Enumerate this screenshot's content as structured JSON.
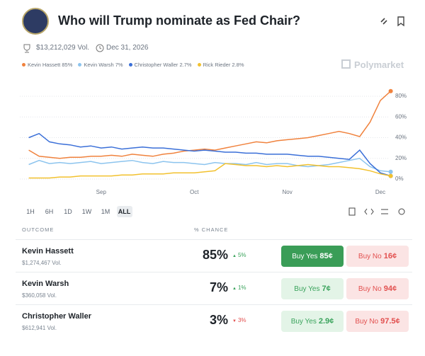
{
  "header": {
    "title": "Who will Trump nominate as Fed Chair?",
    "volume": "$13,212,029 Vol.",
    "end_date": "Dec 31, 2026",
    "brand": "Polymarket"
  },
  "chart_data": {
    "type": "line",
    "categories": [
      null,
      null,
      null,
      null,
      null,
      null,
      null,
      "Sep",
      null,
      null,
      null,
      null,
      null,
      null,
      null,
      null,
      "Oct",
      null,
      null,
      null,
      null,
      null,
      null,
      null,
      null,
      "Nov",
      null,
      null,
      null,
      null,
      null,
      null,
      null,
      null,
      "Dec",
      null
    ],
    "series": [
      {
        "name": "Kevin Hassett 85%",
        "color": "#f0823d",
        "values": [
          28,
          22,
          21,
          20,
          21,
          21,
          22,
          22,
          23,
          22,
          24,
          23,
          22,
          24,
          25,
          27,
          28,
          29,
          28,
          30,
          32,
          34,
          36,
          35,
          37,
          38,
          39,
          40,
          42,
          44,
          46,
          44,
          41,
          55,
          76,
          85
        ]
      },
      {
        "name": "Kevin Warsh 7%",
        "color": "#8cc4ee",
        "values": [
          14,
          18,
          15,
          16,
          15,
          16,
          17,
          15,
          16,
          17,
          18,
          16,
          15,
          17,
          16,
          16,
          15,
          14,
          16,
          15,
          15,
          14,
          16,
          14,
          15,
          15,
          13,
          12,
          13,
          14,
          16,
          18,
          20,
          12,
          8,
          7
        ]
      },
      {
        "name": "Christopher Waller 2.7%",
        "color": "#3a6fd8",
        "values": [
          40,
          44,
          36,
          34,
          33,
          31,
          32,
          30,
          31,
          29,
          30,
          31,
          30,
          30,
          29,
          28,
          27,
          28,
          27,
          26,
          26,
          25,
          25,
          24,
          24,
          24,
          23,
          22,
          22,
          21,
          20,
          19,
          28,
          15,
          6,
          3
        ]
      },
      {
        "name": "Rick Rieder 2.8%",
        "color": "#f2c12e",
        "values": [
          1,
          1,
          1,
          2,
          2,
          3,
          3,
          3,
          3,
          4,
          4,
          5,
          5,
          5,
          6,
          6,
          6,
          7,
          8,
          15,
          14,
          13,
          13,
          12,
          13,
          12,
          13,
          14,
          13,
          12,
          12,
          11,
          10,
          8,
          5,
          3
        ]
      }
    ],
    "ylim": [
      0,
      90
    ],
    "yticks": [
      {
        "value": 0,
        "label": "0%"
      },
      {
        "value": 20,
        "label": "20%"
      },
      {
        "value": 40,
        "label": "40%"
      },
      {
        "value": 60,
        "label": "60%"
      },
      {
        "value": 80,
        "label": "80%"
      }
    ],
    "grid": true
  },
  "controls": {
    "ranges": [
      "1H",
      "6H",
      "1D",
      "1W",
      "1M",
      "ALL"
    ]
  },
  "table": {
    "columns": [
      "OUTCOME",
      "% CHANCE"
    ],
    "buy_yes": "Buy Yes",
    "buy_no": "Buy No",
    "rows": [
      {
        "name": "Kevin Hassett",
        "volume": "$1,274,467 Vol.",
        "chance": "85%",
        "change": "5%",
        "direction": "up",
        "yes": "85¢",
        "no": "16¢"
      },
      {
        "name": "Kevin Warsh",
        "volume": "$360,058 Vol.",
        "chance": "7%",
        "change": "1%",
        "direction": "up",
        "yes": "7¢",
        "no": "94¢"
      },
      {
        "name": "Christopher Waller",
        "volume": "$612,941 Vol.",
        "chance": "3%",
        "change": "3%",
        "direction": "down",
        "yes": "2.9¢",
        "no": "97.5¢"
      }
    ]
  }
}
